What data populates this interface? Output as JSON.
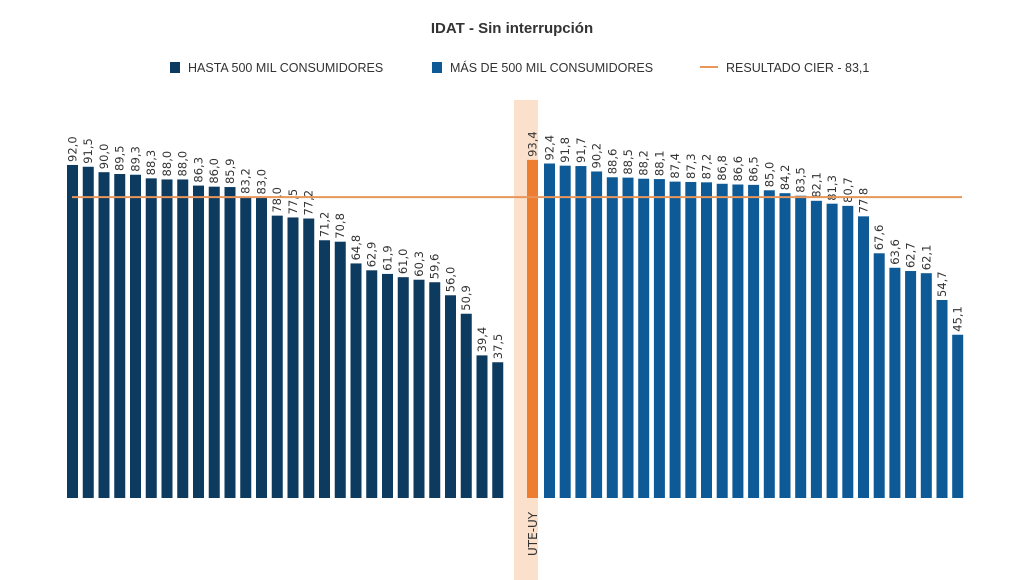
{
  "chart_data": {
    "type": "bar",
    "title": "IDAT - Sin interrupción",
    "xlabel": "",
    "ylabel": "",
    "ylim": [
      0,
      100
    ],
    "grid": false,
    "legend_position": "top-center",
    "legend": [
      {
        "label": "HASTA 500 MIL CONSUMIDORES",
        "kind": "bar",
        "color": "#0d3a5f"
      },
      {
        "label": "MÁS DE 500 MIL CONSUMIDORES",
        "kind": "bar",
        "color": "#0d5a96"
      },
      {
        "label": "RESULTADO CIER - 83,1",
        "kind": "line",
        "color": "#e8965a"
      }
    ],
    "reference_line": {
      "name": "RESULTADO CIER",
      "value": 83.1,
      "color": "#e8965a"
    },
    "series": [
      {
        "name": "HASTA 500 MIL CONSUMIDORES",
        "color": "#0d3a5f",
        "values": [
          92.0,
          91.5,
          90.0,
          89.5,
          89.3,
          88.3,
          88.0,
          88.0,
          86.3,
          86.0,
          85.9,
          83.2,
          83.0,
          78.0,
          77.5,
          77.2,
          71.2,
          70.8,
          64.8,
          62.9,
          61.9,
          61.0,
          60.3,
          59.6,
          56.0,
          50.9,
          39.4,
          37.5
        ],
        "labels": [
          "92,0",
          "91,5",
          "90,0",
          "89,5",
          "89,3",
          "88,3",
          "88,0",
          "88,0",
          "86,3",
          "86,0",
          "85,9",
          "83,2",
          "83,0",
          "78,0",
          "77,5",
          "77,2",
          "71,2",
          "70,8",
          "64,8",
          "62,9",
          "61,9",
          "61,0",
          "60,3",
          "59,6",
          "56,0",
          "50,9",
          "39,4",
          "37,5"
        ]
      },
      {
        "name": "UTE-UY",
        "category": "UTE-UY",
        "color": "#ed7d31",
        "highlight_color": "#fbe0cc",
        "values": [
          93.4
        ],
        "labels": [
          "93,4"
        ]
      },
      {
        "name": "MÁS DE 500 MIL CONSUMIDORES",
        "color": "#0d5a96",
        "values": [
          92.4,
          91.8,
          91.7,
          90.2,
          88.6,
          88.5,
          88.2,
          88.1,
          87.4,
          87.3,
          87.2,
          86.8,
          86.6,
          86.5,
          85.0,
          84.2,
          83.5,
          82.1,
          81.3,
          80.7,
          77.8,
          67.6,
          63.6,
          62.7,
          62.1,
          54.7,
          45.1
        ],
        "labels": [
          "92,4",
          "91,8",
          "91,7",
          "90,2",
          "88,6",
          "88,5",
          "88,2",
          "88,1",
          "87,4",
          "87,3",
          "87,2",
          "86,8",
          "86,6",
          "86,5",
          "85,0",
          "84,2",
          "83,5",
          "82,1",
          "81,3",
          "80,7",
          "77,8",
          "67,6",
          "63,6",
          "62,7",
          "62,1",
          "54,7",
          "45,1"
        ]
      }
    ]
  }
}
